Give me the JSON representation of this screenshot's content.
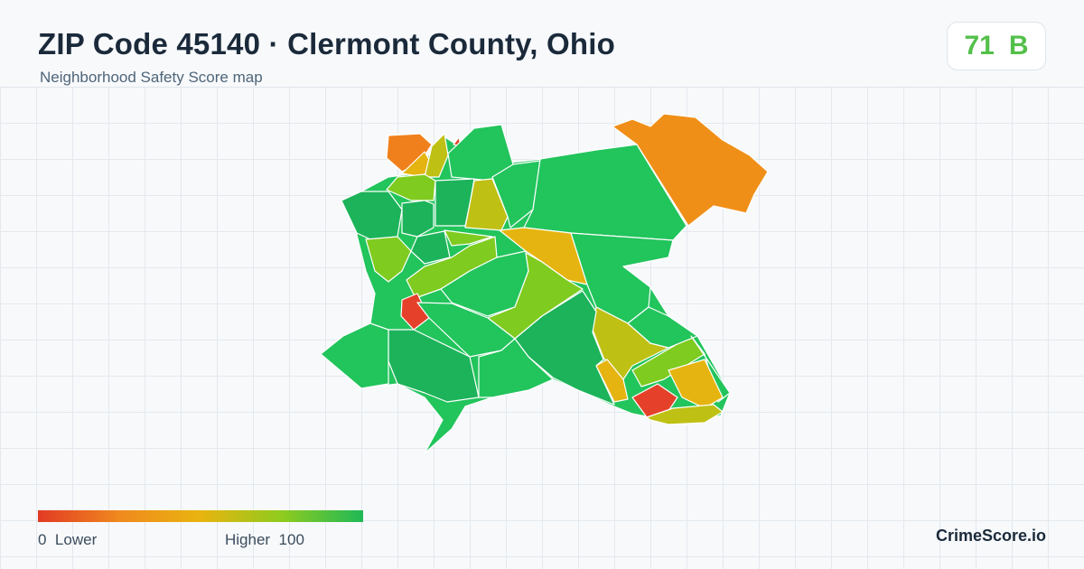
{
  "header": {
    "title": "ZIP Code 45140 · Clermont County, Ohio",
    "subtitle": "Neighborhood Safety Score map"
  },
  "score": {
    "value": "71",
    "grade": "B",
    "color": "#53c04a"
  },
  "legend": {
    "min_label": "0",
    "low_label": "Lower",
    "high_label": "Higher",
    "max_label": "100",
    "colors": [
      "#e23a24",
      "#f0891e",
      "#e9b40f",
      "#8fcb1e",
      "#1fb957"
    ]
  },
  "brand": {
    "label": "CrimeScore.io"
  },
  "map": {
    "region_colors": {
      "low": "#e5412a",
      "lower": "#f0801c",
      "mid_low": "#f08f18",
      "mid": "#e6b410",
      "mid_high": "#bfc014",
      "higher": "#7fcb1f",
      "high": "#22c45c",
      "highest": "#1db35a"
    }
  }
}
